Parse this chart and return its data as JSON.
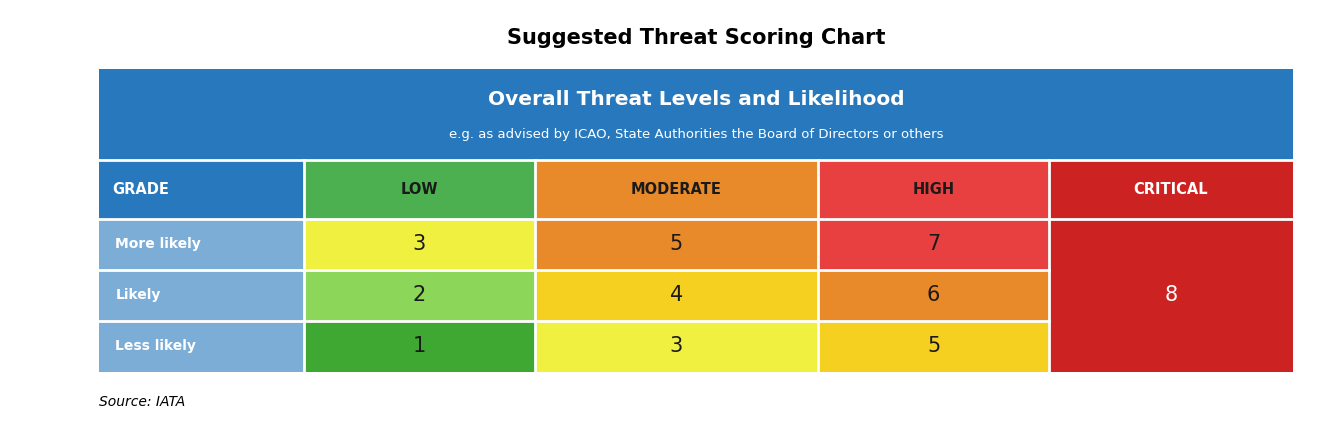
{
  "title": "Suggested Threat Scoring Chart",
  "header_main": "Overall Threat Levels and Likelihood",
  "header_sub": "e.g. as advised by ICAO, State Authorities the Board of Directors or others",
  "source": "Source: IATA",
  "col_labels": [
    "GRADE",
    "LOW",
    "MODERATE",
    "HIGH",
    "CRITICAL"
  ],
  "row_labels": [
    "More likely",
    "Likely",
    "Less likely"
  ],
  "cell_values": [
    [
      "3",
      "5",
      "7",
      ""
    ],
    [
      "2",
      "4",
      "6",
      "8"
    ],
    [
      "1",
      "3",
      "5",
      ""
    ]
  ],
  "header_bg": "#2878BE",
  "header_text_color": "#FFFFFF",
  "header_sub_text_color": "#FFFFFF",
  "col_header_colors": [
    "#2878BE",
    "#4CAF50",
    "#E8892A",
    "#E84040",
    "#CC2222"
  ],
  "col_header_text_colors": [
    "#FFFFFF",
    "#1a1a1a",
    "#1a1a1a",
    "#1a1a1a",
    "#FFFFFF"
  ],
  "grade_col_color": "#7BADD6",
  "grade_text_color": "#FFFFFF",
  "low_colors": [
    "#F0F040",
    "#8CD65A",
    "#3FA832"
  ],
  "moderate_colors": [
    "#E8892A",
    "#F5D020",
    "#F0F040"
  ],
  "high_colors": [
    "#E84040",
    "#E8892A",
    "#F5D020"
  ],
  "critical_color": "#CC2222",
  "cell_number_color": "#1a1a1a",
  "critical_number_color": "#FFFFFF",
  "figsize": [
    13.26,
    4.32
  ],
  "dpi": 100
}
